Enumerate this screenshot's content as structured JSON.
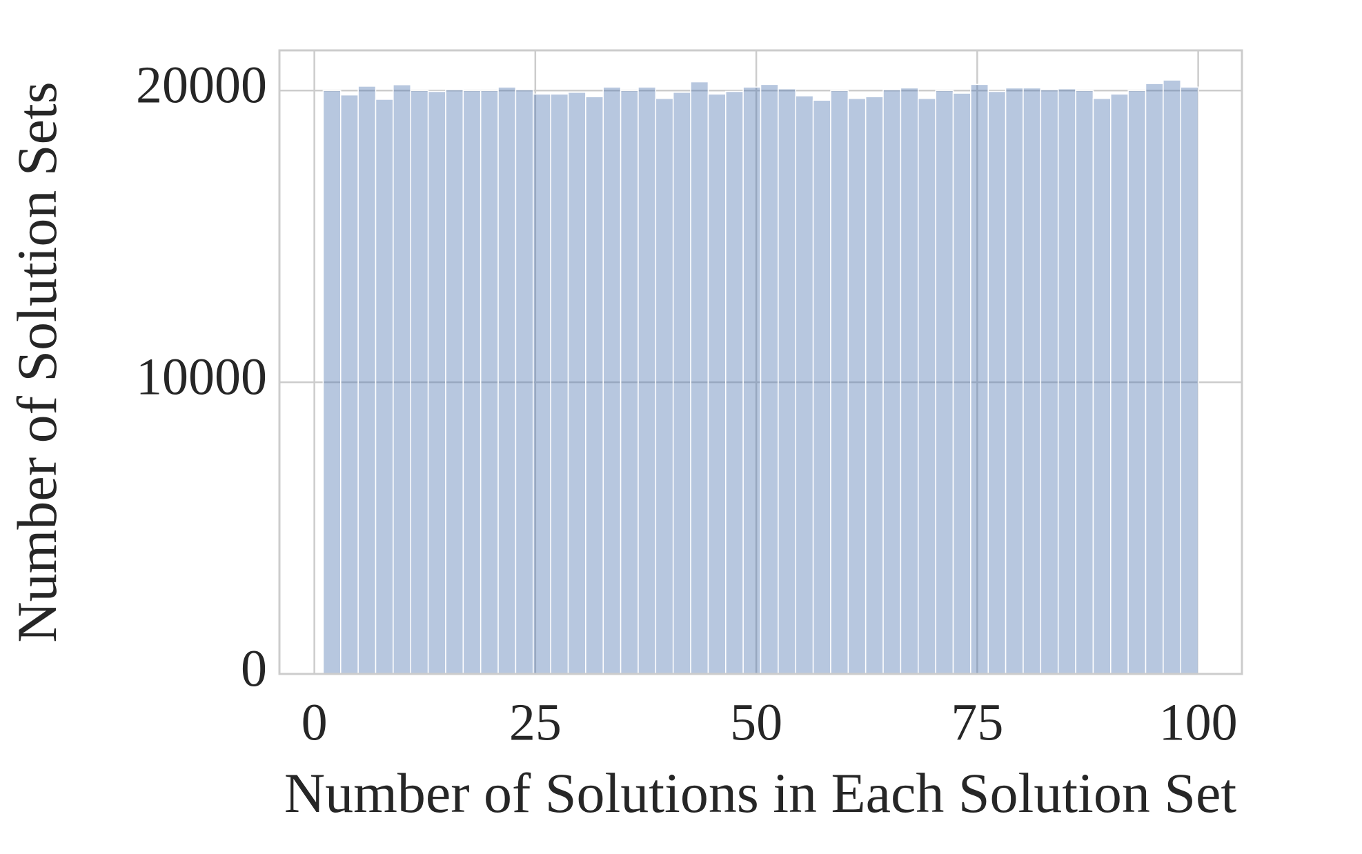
{
  "chart_data": {
    "type": "histogram",
    "xlabel": "Number of Solutions in Each Solution Set",
    "ylabel": "Number of Solution Sets",
    "bins": [
      1,
      2.98,
      4.96,
      6.94,
      8.92,
      10.9,
      12.88,
      14.86,
      16.84,
      18.82,
      20.8,
      22.78,
      24.76,
      26.74,
      28.72,
      30.7,
      32.68,
      34.66,
      36.64,
      38.62,
      40.6,
      42.58,
      44.56,
      46.54,
      48.52,
      50.5,
      52.48,
      54.46,
      56.44,
      58.42,
      60.4,
      62.38,
      64.36,
      66.34,
      68.32,
      70.3,
      72.28,
      74.26,
      76.24,
      78.22,
      80.2,
      82.18,
      84.16,
      86.14,
      88.12,
      90.1,
      92.08,
      94.06,
      96.04,
      98.02,
      100
    ],
    "values": [
      20000,
      19850,
      20150,
      19700,
      20200,
      20000,
      19970,
      20030,
      20000,
      20000,
      20120,
      20030,
      19880,
      19880,
      19940,
      19790,
      20120,
      20000,
      20120,
      19730,
      19940,
      20300,
      19880,
      19970,
      20120,
      20210,
      20060,
      19820,
      19670,
      20000,
      19730,
      19790,
      20030,
      20090,
      19730,
      20000,
      19910,
      20210,
      19970,
      20090,
      20090,
      20030,
      20060,
      20000,
      19730,
      19880,
      20000,
      20240,
      20360,
      20120
    ],
    "color": "#4c72b0",
    "xlim": [
      -3.95,
      104.95
    ],
    "ylim": [
      0,
      21378
    ],
    "xticks": [
      0,
      25,
      50,
      75,
      100
    ],
    "yticks": [
      0,
      10000,
      20000
    ],
    "grid": true
  }
}
